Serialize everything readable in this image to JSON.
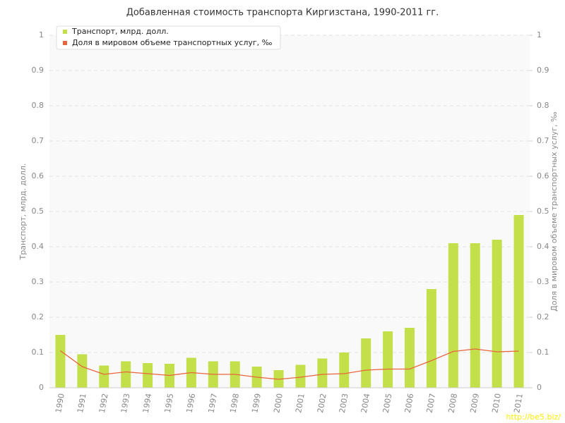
{
  "chart_data": {
    "type": "bar-line",
    "title": "Добавленная стоимость транспорта Киргизстана, 1990-2011 гг.",
    "y_label": "Транспорт, млрд. долл.",
    "y2_label": "Доля в мировом объеме транспортных услуг, ‰",
    "watermark": "http://be5.biz/",
    "categories": [
      "1990",
      "1991",
      "1992",
      "1993",
      "1994",
      "1995",
      "1996",
      "1997",
      "1998",
      "1999",
      "2000",
      "2001",
      "2002",
      "2003",
      "2004",
      "2005",
      "2006",
      "2007",
      "2008",
      "2009",
      "2010",
      "2011"
    ],
    "series": [
      {
        "name": "Транспорт, млрд. долл.",
        "color": "#c3e04a",
        "type": "bar",
        "values": [
          0.15,
          0.095,
          0.063,
          0.075,
          0.07,
          0.068,
          0.085,
          0.075,
          0.075,
          0.06,
          0.05,
          0.065,
          0.083,
          0.1,
          0.14,
          0.16,
          0.17,
          0.28,
          0.41,
          0.41,
          0.42,
          0.49
        ]
      },
      {
        "name": "Доля в мировом объеме транспортных услуг, ‰",
        "color": "#e8643c",
        "type": "line",
        "axis": "y2",
        "values": [
          0.105,
          0.06,
          0.038,
          0.045,
          0.04,
          0.035,
          0.043,
          0.038,
          0.038,
          0.03,
          0.024,
          0.03,
          0.038,
          0.04,
          0.05,
          0.053,
          0.053,
          0.077,
          0.103,
          0.11,
          0.102,
          0.104
        ]
      }
    ],
    "ylim": [
      0,
      1
    ],
    "yticks": [
      0,
      0.1,
      0.2,
      0.3,
      0.4,
      0.5,
      0.6,
      0.7,
      0.8,
      0.9,
      1
    ],
    "y2lim": [
      0,
      1
    ],
    "y2ticks": [
      0,
      0.1,
      0.2,
      0.3,
      0.4,
      0.5,
      0.6,
      0.7,
      0.8,
      0.9,
      1
    ],
    "grid": true
  }
}
